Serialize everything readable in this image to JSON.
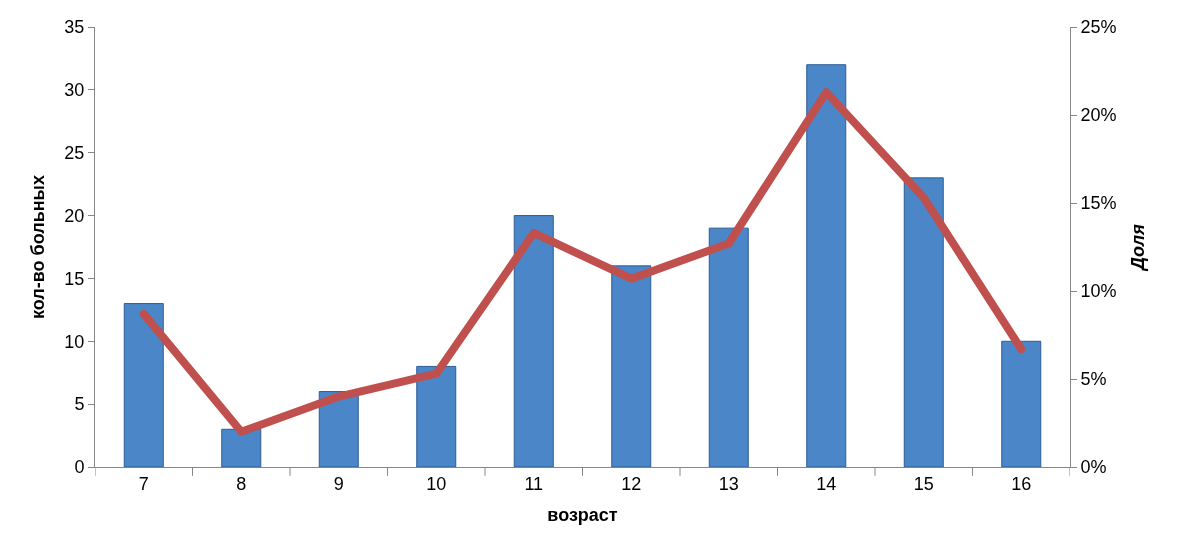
{
  "chart_data": {
    "type": "bar",
    "xlabel": "возраст",
    "ylabel": "кол-во больных",
    "y2label": "Доля",
    "categories": [
      "7",
      "8",
      "9",
      "10",
      "11",
      "12",
      "13",
      "14",
      "15",
      "16"
    ],
    "series": [
      {
        "color": "#4a86c8",
        "values": [
          13,
          3,
          6,
          8,
          20,
          16,
          19,
          32,
          23,
          10
        ]
      },
      {
        "type": "line",
        "axis": "y2",
        "color": "#c0504d",
        "values": [
          0.087,
          0.02,
          0.04,
          0.053,
          0.133,
          0.107,
          0.127,
          0.213,
          0.153,
          0.067
        ]
      }
    ],
    "ylim": [
      0,
      35
    ],
    "yticks": [
      0,
      5,
      10,
      15,
      20,
      25,
      30,
      35
    ],
    "y2lim": [
      0,
      0.25
    ],
    "y2ticks": [
      {
        "value": 0,
        "label": "0%"
      },
      {
        "value": 0.05,
        "label": "5%"
      },
      {
        "value": 0.1,
        "label": "10%"
      },
      {
        "value": 0.15,
        "label": "15%"
      },
      {
        "value": 0.2,
        "label": "20%"
      },
      {
        "value": 0.25,
        "label": "25%"
      }
    ],
    "line_style": "solid"
  }
}
